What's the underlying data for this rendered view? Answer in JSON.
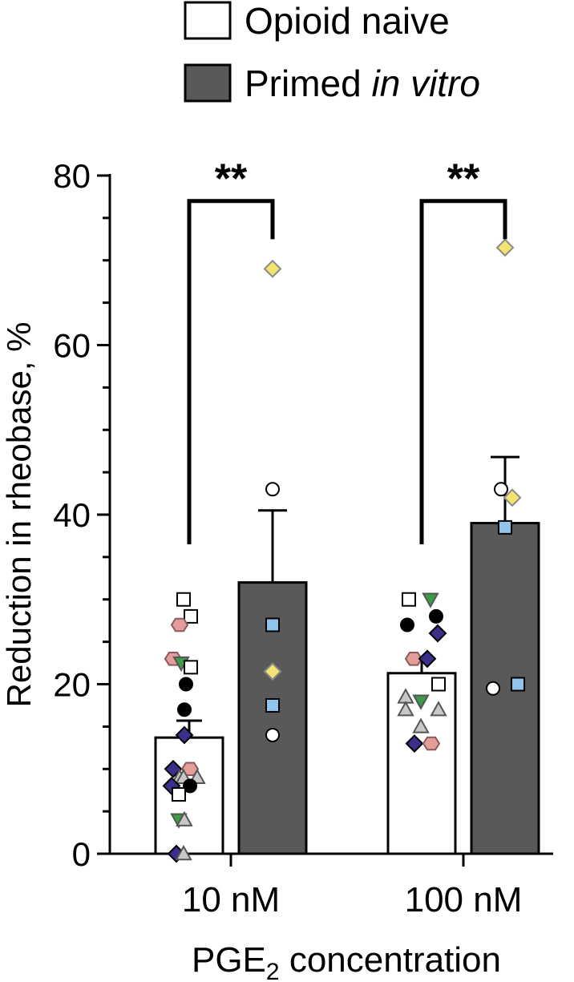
{
  "chart_data": {
    "type": "bar",
    "categories": [
      "10 nM",
      "100 nM"
    ],
    "xlabel_main": "PGE",
    "xlabel_sub": "2",
    "xlabel_rest": " concentration",
    "ylabel": "Reduction in rheobase, %",
    "ylim": [
      0,
      80
    ],
    "yticks": [
      0,
      20,
      40,
      60,
      80
    ],
    "legend_position": "top",
    "series": [
      {
        "name": "Opioid naive",
        "fill": "#ffffff",
        "values": [
          13.7,
          21.3
        ],
        "sem": [
          2.0,
          1.6
        ]
      },
      {
        "name_regular": "Primed ",
        "name_italic": "in vitro",
        "fill": "#595959",
        "values": [
          32.0,
          39.0
        ],
        "sem": [
          8.5,
          7.8
        ]
      }
    ],
    "significance": [
      {
        "category": "10 nM",
        "label": "**"
      },
      {
        "category": "100 nM",
        "label": "**"
      }
    ],
    "colors": {
      "navy": "#3a2f8a",
      "pink": "#e39d9b",
      "green": "#3d9a45",
      "gray": "#c8c8c8",
      "yellow": "#f3e46f",
      "blue": "#8fc4ec",
      "black": "#000000",
      "white": "#ffffff"
    },
    "points": [
      {
        "category": 0,
        "series": 0,
        "y": 30,
        "shape": "square",
        "color": "white",
        "dx": -0.7
      },
      {
        "category": 0,
        "series": 0,
        "y": 28,
        "shape": "square",
        "color": "white",
        "dx": 0.2
      },
      {
        "category": 0,
        "series": 0,
        "y": 27,
        "shape": "hexagon",
        "color": "pink",
        "dx": -1.2
      },
      {
        "category": 0,
        "series": 0,
        "y": 23,
        "shape": "hexagon",
        "color": "pink",
        "dx": -2.0
      },
      {
        "category": 0,
        "series": 0,
        "y": 22.5,
        "shape": "triangle-down",
        "color": "green",
        "dx": -1.0
      },
      {
        "category": 0,
        "series": 0,
        "y": 22,
        "shape": "square",
        "color": "white",
        "dx": 0.2
      },
      {
        "category": 0,
        "series": 0,
        "y": 20,
        "shape": "circle",
        "color": "black",
        "dx": -0.4
      },
      {
        "category": 0,
        "series": 0,
        "y": 17,
        "shape": "circle",
        "color": "black",
        "dx": -0.6
      },
      {
        "category": 0,
        "series": 0,
        "y": 14,
        "shape": "diamond",
        "color": "navy",
        "dx": -0.6
      },
      {
        "category": 0,
        "series": 0,
        "y": 10,
        "shape": "diamond",
        "color": "navy",
        "dx": -2.0
      },
      {
        "category": 0,
        "series": 0,
        "y": 10,
        "shape": "hexagon",
        "color": "pink",
        "dx": 0.1
      },
      {
        "category": 0,
        "series": 0,
        "y": 9,
        "shape": "triangle",
        "color": "gray",
        "dx": -1.2
      },
      {
        "category": 0,
        "series": 0,
        "y": 9,
        "shape": "triangle",
        "color": "gray",
        "dx": -0.7
      },
      {
        "category": 0,
        "series": 0,
        "y": 9,
        "shape": "triangle",
        "color": "gray",
        "dx": 1.0
      },
      {
        "category": 0,
        "series": 0,
        "y": 8,
        "shape": "diamond",
        "color": "navy",
        "dx": -2.2
      },
      {
        "category": 0,
        "series": 0,
        "y": 8,
        "shape": "circle",
        "color": "black",
        "dx": 0.1
      },
      {
        "category": 0,
        "series": 0,
        "y": 7,
        "shape": "square",
        "color": "white",
        "dx": -1.3
      },
      {
        "category": 0,
        "series": 0,
        "y": 4,
        "shape": "triangle-down",
        "color": "green",
        "dx": -1.3
      },
      {
        "category": 0,
        "series": 0,
        "y": 4,
        "shape": "triangle",
        "color": "gray",
        "dx": -0.6
      },
      {
        "category": 0,
        "series": 0,
        "y": 0,
        "shape": "diamond",
        "color": "navy",
        "dx": -1.6
      },
      {
        "category": 0,
        "series": 0,
        "y": 0,
        "shape": "triangle",
        "color": "gray",
        "dx": -0.7
      },
      {
        "category": 0,
        "series": 1,
        "y": 69,
        "shape": "diamond",
        "color": "yellow",
        "dx": 0
      },
      {
        "category": 0,
        "series": 1,
        "y": 43,
        "shape": "circle",
        "color": "white",
        "dx": 0
      },
      {
        "category": 0,
        "series": 1,
        "y": 27,
        "shape": "square",
        "color": "blue",
        "dx": 0
      },
      {
        "category": 0,
        "series": 1,
        "y": 21.5,
        "shape": "diamond",
        "color": "yellow",
        "dx": 0
      },
      {
        "category": 0,
        "series": 1,
        "y": 17.5,
        "shape": "square",
        "color": "blue",
        "dx": 0
      },
      {
        "category": 0,
        "series": 1,
        "y": 14,
        "shape": "circle",
        "color": "white",
        "dx": 0
      },
      {
        "category": 1,
        "series": 0,
        "y": 30,
        "shape": "square",
        "color": "white",
        "dx": -1.6
      },
      {
        "category": 1,
        "series": 0,
        "y": 30,
        "shape": "triangle-down",
        "color": "green",
        "dx": 1.1
      },
      {
        "category": 1,
        "series": 0,
        "y": 28,
        "shape": "circle",
        "color": "black",
        "dx": 1.8
      },
      {
        "category": 1,
        "series": 0,
        "y": 27,
        "shape": "circle",
        "color": "black",
        "dx": -1.8
      },
      {
        "category": 1,
        "series": 0,
        "y": 26,
        "shape": "diamond",
        "color": "navy",
        "dx": 2.0
      },
      {
        "category": 1,
        "series": 0,
        "y": 23,
        "shape": "hexagon",
        "color": "pink",
        "dx": -1.0
      },
      {
        "category": 1,
        "series": 0,
        "y": 23,
        "shape": "diamond",
        "color": "navy",
        "dx": 0.7
      },
      {
        "category": 1,
        "series": 0,
        "y": 20,
        "shape": "square",
        "color": "white",
        "dx": 2.1
      },
      {
        "category": 1,
        "series": 0,
        "y": 18,
        "shape": "triangle-down",
        "color": "green",
        "dx": -0.1
      },
      {
        "category": 1,
        "series": 0,
        "y": 18.5,
        "shape": "triangle",
        "color": "gray",
        "dx": -2.0
      },
      {
        "category": 1,
        "series": 0,
        "y": 17,
        "shape": "triangle",
        "color": "gray",
        "dx": -2.0
      },
      {
        "category": 1,
        "series": 0,
        "y": 17,
        "shape": "triangle",
        "color": "gray",
        "dx": 2.1
      },
      {
        "category": 1,
        "series": 0,
        "y": 15,
        "shape": "triangle",
        "color": "gray",
        "dx": -0.1
      },
      {
        "category": 1,
        "series": 0,
        "y": 13,
        "shape": "diamond",
        "color": "navy",
        "dx": -0.9
      },
      {
        "category": 1,
        "series": 0,
        "y": 13,
        "shape": "hexagon",
        "color": "pink",
        "dx": 1.2
      },
      {
        "category": 1,
        "series": 1,
        "y": 71.5,
        "shape": "diamond",
        "color": "yellow",
        "dx": 0
      },
      {
        "category": 1,
        "series": 1,
        "y": 43,
        "shape": "circle",
        "color": "white",
        "dx": -0.5
      },
      {
        "category": 1,
        "series": 1,
        "y": 42,
        "shape": "diamond",
        "color": "yellow",
        "dx": 0.9
      },
      {
        "category": 1,
        "series": 1,
        "y": 38.5,
        "shape": "square",
        "color": "blue",
        "dx": 0
      },
      {
        "category": 1,
        "series": 1,
        "y": 19.5,
        "shape": "circle",
        "color": "white",
        "dx": -1.5
      },
      {
        "category": 1,
        "series": 1,
        "y": 20,
        "shape": "square",
        "color": "blue",
        "dx": 1.6
      }
    ]
  }
}
